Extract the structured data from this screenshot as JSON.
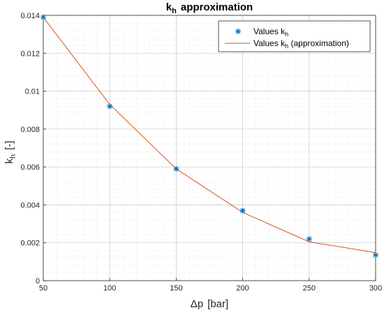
{
  "chart_data": {
    "type": "line",
    "title": {
      "main": "k",
      "sub": "h",
      "rest": "approximation"
    },
    "xlabel": {
      "symbol": "Δp",
      "unit": "[bar]"
    },
    "ylabel": {
      "main": "k",
      "sub": "h",
      "unit": "[-]"
    },
    "xlim": [
      50,
      300
    ],
    "ylim": [
      0,
      0.014
    ],
    "xticks": [
      50,
      100,
      150,
      200,
      250,
      300
    ],
    "yticks": [
      0,
      0.002,
      0.004,
      0.006,
      0.008,
      0.01,
      0.012,
      0.014
    ],
    "grid": true,
    "minor_grid": true,
    "legend_position": "top-right",
    "series": [
      {
        "name": {
          "main": "Values  k",
          "sub": "h",
          "rest": ""
        },
        "type": "scatter",
        "marker": "asterisk",
        "color": "#0072BD",
        "x": [
          50,
          100,
          150,
          200,
          250,
          300
        ],
        "y": [
          0.0139,
          0.0092,
          0.0059,
          0.0037,
          0.0022,
          0.00135
        ]
      },
      {
        "name": {
          "main": "Values  k",
          "sub": "h",
          "rest": "  (approximation)"
        },
        "type": "line",
        "color": "#D95319",
        "x": [
          50,
          100,
          150,
          200,
          250,
          300
        ],
        "y": [
          0.0139,
          0.0093,
          0.0059,
          0.0036,
          0.00205,
          0.00148
        ]
      }
    ]
  }
}
